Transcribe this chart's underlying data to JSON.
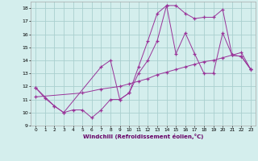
{
  "xlabel": "Windchill (Refroidissement éolien,°C)",
  "background_color": "#d4eeed",
  "grid_color": "#aacfcf",
  "line_color": "#993399",
  "xlim_min": -0.5,
  "xlim_max": 23.5,
  "ylim_min": 9.0,
  "ylim_max": 18.5,
  "yticks": [
    9,
    10,
    11,
    12,
    13,
    14,
    15,
    16,
    17,
    18
  ],
  "xticks": [
    0,
    1,
    2,
    3,
    4,
    5,
    6,
    7,
    8,
    9,
    10,
    11,
    12,
    13,
    14,
    15,
    16,
    17,
    18,
    19,
    20,
    21,
    22,
    23
  ],
  "line1_x": [
    0,
    1,
    2,
    3,
    4,
    5,
    6,
    7,
    8,
    9,
    10,
    11,
    12,
    13,
    14,
    15,
    16,
    17,
    18,
    19,
    20,
    21,
    22,
    23
  ],
  "line1_y": [
    11.9,
    11.1,
    10.5,
    10.0,
    10.2,
    10.2,
    9.6,
    10.2,
    11.0,
    11.0,
    11.5,
    13.5,
    15.5,
    17.6,
    18.2,
    18.2,
    17.6,
    17.2,
    17.3,
    17.3,
    17.9,
    14.4,
    14.3,
    13.3
  ],
  "line2_x": [
    0,
    2,
    3,
    7,
    8,
    9,
    10,
    11,
    12,
    13,
    14,
    15,
    16,
    17,
    18,
    19,
    20,
    21,
    22,
    23
  ],
  "line2_y": [
    11.9,
    10.5,
    10.0,
    13.5,
    14.0,
    11.0,
    11.5,
    13.0,
    14.0,
    15.5,
    18.2,
    14.5,
    16.1,
    14.5,
    13.0,
    13.0,
    16.1,
    14.4,
    14.3,
    13.3
  ],
  "line3_x": [
    0,
    5,
    7,
    9,
    10,
    11,
    12,
    13,
    14,
    15,
    16,
    17,
    18,
    19,
    20,
    21,
    22,
    23
  ],
  "line3_y": [
    11.2,
    11.5,
    11.8,
    12.0,
    12.2,
    12.4,
    12.6,
    12.9,
    13.1,
    13.3,
    13.5,
    13.7,
    13.9,
    14.0,
    14.2,
    14.4,
    14.6,
    13.3
  ]
}
